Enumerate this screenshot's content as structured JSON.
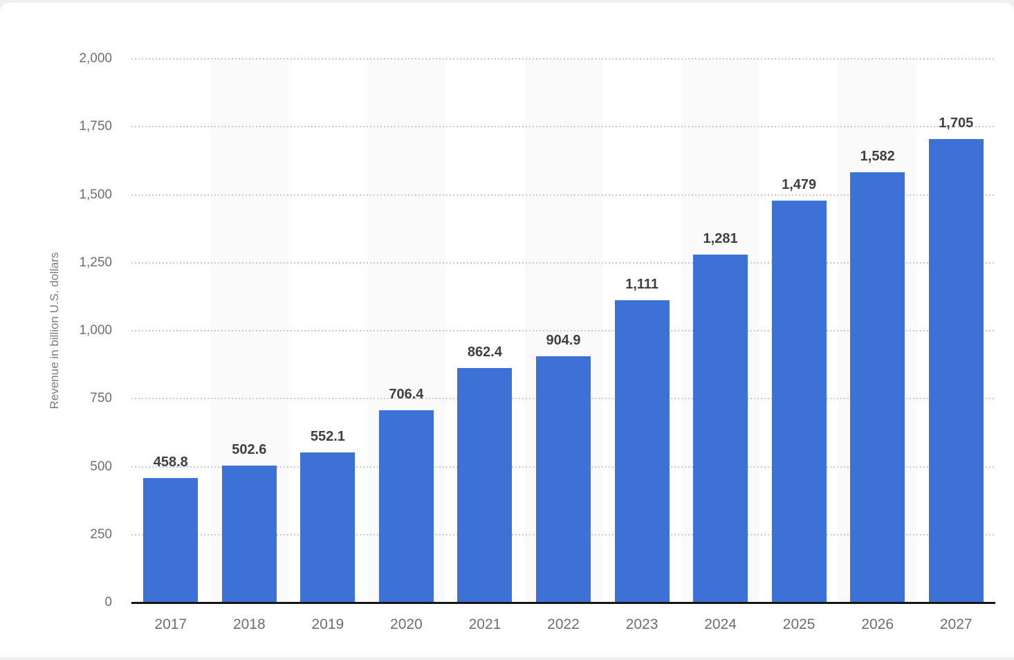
{
  "chart_data": {
    "type": "bar",
    "title": "",
    "xlabel": "",
    "ylabel": "Revenue in billion U.S. dollars",
    "categories": [
      "2017",
      "2018",
      "2019",
      "2020",
      "2021",
      "2022",
      "2023",
      "2024",
      "2025",
      "2026",
      "2027"
    ],
    "values": [
      458.8,
      502.6,
      552.1,
      706.4,
      862.4,
      904.9,
      1111,
      1281,
      1479,
      1582,
      1705
    ],
    "value_labels": [
      "458.8",
      "502.6",
      "552.1",
      "706.4",
      "862.4",
      "904.9",
      "1,111",
      "1,281",
      "1,479",
      "1,582",
      "1,705"
    ],
    "ylim": [
      0,
      2000
    ],
    "ytick_step": 250,
    "ytick_labels": [
      "0",
      "250",
      "500",
      "750",
      "1,000",
      "1,250",
      "1,500",
      "1,750",
      "2,000"
    ],
    "grid": "horizontal-dotted",
    "legend_position": "none",
    "background_stripes": "alternating vertical bands behind 2018, 2020, 2022, 2024, 2026",
    "colors": {
      "bar": "#3e71d6",
      "stripe": "#fafafa",
      "gridline": "#c9c9cb",
      "axis_line": "#141414",
      "tick_text": "#6e6e6e",
      "ylabel_text": "#7c7c7c",
      "value_label_text": "#3f3f3f",
      "page_background": "#f0f0f2",
      "card_background": "#ffffff"
    }
  }
}
